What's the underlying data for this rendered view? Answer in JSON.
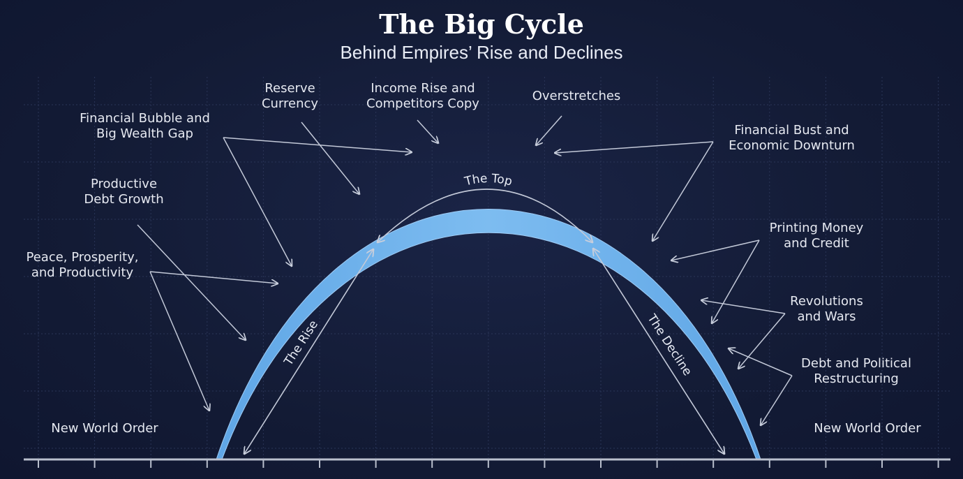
{
  "title": "The Big Cycle",
  "subtitle": "Behind Empires’ Rise and Declines",
  "phases": {
    "rise": "The Rise",
    "top": "The Top",
    "decline": "The Decline"
  },
  "labels": {
    "reserve_currency": [
      "Reserve",
      "Currency"
    ],
    "income_rise": [
      "Income Rise and",
      "Competitors Copy"
    ],
    "overstretches": [
      "Overstretches"
    ],
    "financial_bubble": [
      "Financial Bubble and",
      "Big Wealth Gap"
    ],
    "financial_bust": [
      "Financial Bust and",
      "Economic Downturn"
    ],
    "productive_debt": [
      "Productive",
      "Debt Growth"
    ],
    "printing_money": [
      "Printing Money",
      "and Credit"
    ],
    "peace": [
      "Peace, Prosperity,",
      "and Productivity"
    ],
    "revolutions": [
      "Revolutions",
      "and Wars"
    ],
    "debt_restructuring": [
      "Debt and Political",
      "Restructuring"
    ],
    "new_world_order_left": [
      "New World Order"
    ],
    "new_world_order_right": [
      "New World Order"
    ]
  },
  "colors": {
    "background": "#141d38",
    "curve": "#6aaeea",
    "curve_light": "#9fccf5",
    "text": "#e6e9f1",
    "grid": "#2a3557"
  }
}
